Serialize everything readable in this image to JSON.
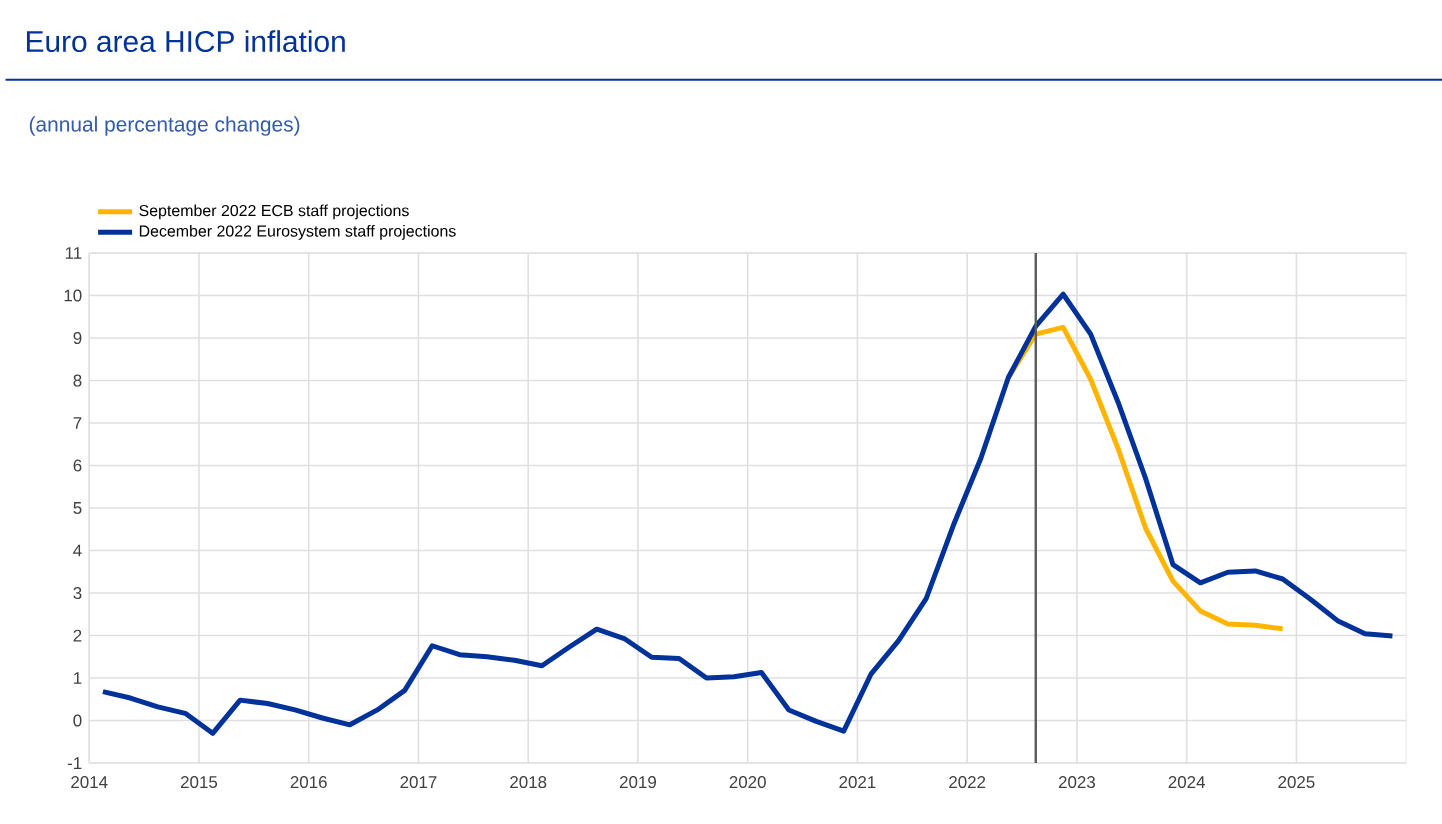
{
  "chart_data": {
    "type": "line",
    "title": "Euro area HICP inflation",
    "subtitle": "(annual percentage changes)",
    "series": [
      {
        "name": "September 2022 ECB staff projections",
        "color": "#ffb400",
        "x": [
          2022.375,
          2022.625,
          2022.875,
          2023.125,
          2023.375,
          2023.625,
          2023.875,
          2024.125,
          2024.375,
          2024.625,
          2024.875
        ],
        "values": [
          8.07,
          9.09,
          9.25,
          8.03,
          6.4,
          4.53,
          3.28,
          2.58,
          2.27,
          2.24,
          2.16
        ]
      },
      {
        "name": "December 2022 Eurosystem staff projections",
        "color": "#003299",
        "x": [
          2014.125,
          2014.375,
          2014.625,
          2014.875,
          2015.125,
          2015.375,
          2015.625,
          2015.875,
          2016.125,
          2016.375,
          2016.625,
          2016.875,
          2017.125,
          2017.375,
          2017.625,
          2017.875,
          2018.125,
          2018.375,
          2018.625,
          2018.875,
          2019.125,
          2019.375,
          2019.625,
          2019.875,
          2020.125,
          2020.375,
          2020.625,
          2020.875,
          2021.125,
          2021.375,
          2021.625,
          2021.875,
          2022.125,
          2022.375,
          2022.625,
          2022.875,
          2023.125,
          2023.375,
          2023.625,
          2023.875,
          2024.125,
          2024.375,
          2024.625,
          2024.875,
          2025.125,
          2025.375,
          2025.625,
          2025.875
        ],
        "values": [
          0.68,
          0.53,
          0.32,
          0.17,
          -0.3,
          0.48,
          0.4,
          0.25,
          0.06,
          -0.1,
          0.25,
          0.71,
          1.76,
          1.55,
          1.5,
          1.42,
          1.29,
          1.73,
          2.15,
          1.93,
          1.49,
          1.46,
          1.0,
          1.03,
          1.13,
          0.25,
          -0.02,
          -0.25,
          1.1,
          1.88,
          2.86,
          4.6,
          6.17,
          8.07,
          9.28,
          10.03,
          9.09,
          7.49,
          5.7,
          3.67,
          3.24,
          3.49,
          3.52,
          3.33,
          2.86,
          2.35,
          2.04,
          1.99
        ]
      }
    ],
    "xlim": [
      2014,
      2026
    ],
    "xticks": [
      2014,
      2015,
      2016,
      2017,
      2018,
      2019,
      2020,
      2021,
      2022,
      2023,
      2024,
      2025
    ],
    "ylim": [
      -1,
      11
    ],
    "yticks": [
      -1,
      0,
      1,
      2,
      3,
      4,
      5,
      6,
      7,
      8,
      9,
      10,
      11
    ],
    "ref_lines": [
      {
        "axis": "x",
        "value": 2022.625,
        "color": "#5a5a5a"
      }
    ],
    "grid": true,
    "legend": "top left",
    "line_style": "solid",
    "marker": "none"
  }
}
